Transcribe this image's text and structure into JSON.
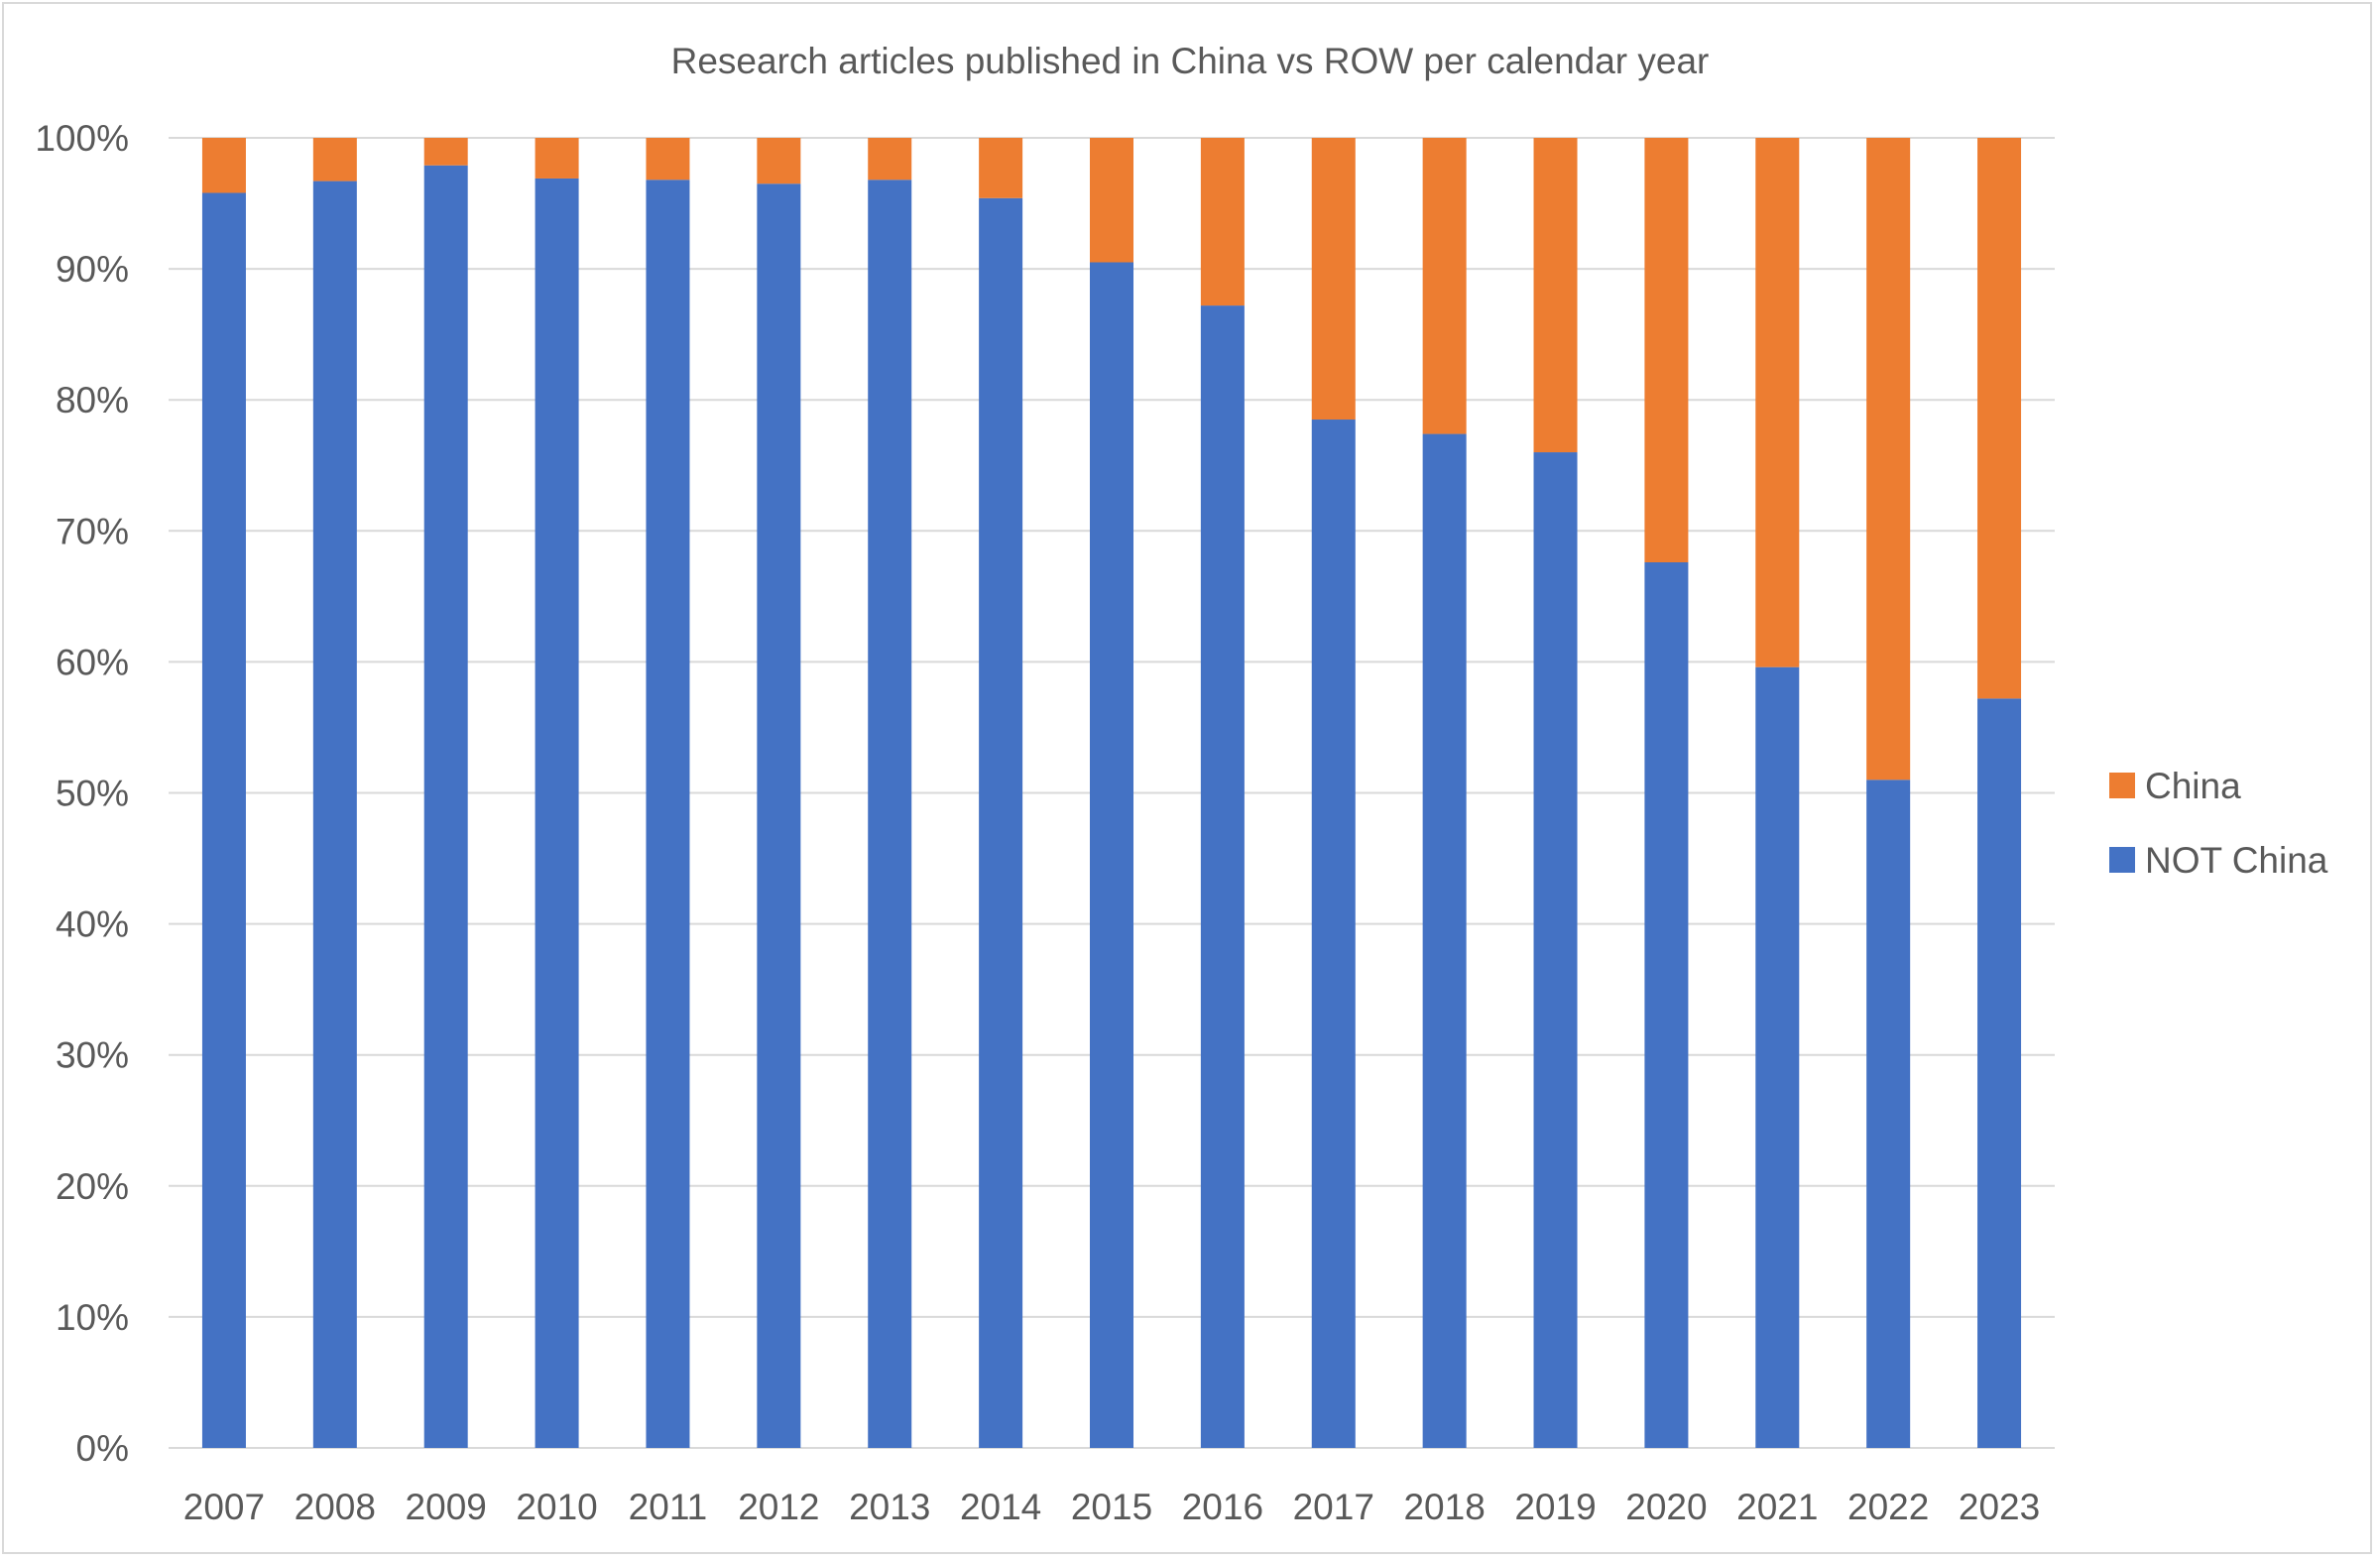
{
  "chart_data": {
    "type": "bar",
    "stacked": true,
    "percent_stacked": true,
    "title": "Research articles published in China vs ROW per calendar year",
    "xlabel": "",
    "ylabel": "",
    "categories": [
      "2007",
      "2008",
      "2009",
      "2010",
      "2011",
      "2012",
      "2013",
      "2014",
      "2015",
      "2016",
      "2017",
      "2018",
      "2019",
      "2020",
      "2021",
      "2022",
      "2023"
    ],
    "series": [
      {
        "name": "NOT China",
        "color": "#4472C4",
        "values": [
          95.8,
          96.7,
          97.9,
          96.9,
          96.8,
          96.5,
          96.8,
          95.4,
          90.5,
          87.2,
          78.5,
          77.4,
          76.0,
          67.6,
          59.6,
          51.0,
          57.2
        ]
      },
      {
        "name": "China",
        "color": "#ED7D31",
        "values": [
          4.2,
          3.3,
          2.1,
          3.1,
          3.2,
          3.5,
          3.2,
          4.6,
          9.5,
          12.8,
          21.5,
          22.6,
          24.0,
          32.4,
          40.4,
          49.0,
          42.8
        ]
      }
    ],
    "ylim": [
      0,
      100
    ],
    "yticks": [
      "0%",
      "10%",
      "20%",
      "30%",
      "40%",
      "50%",
      "60%",
      "70%",
      "80%",
      "90%",
      "100%"
    ],
    "grid": true,
    "legend": {
      "placement": "right",
      "entries": [
        {
          "name": "China",
          "color": "#ED7D31"
        },
        {
          "name": "NOT China",
          "color": "#4472C4"
        }
      ]
    }
  }
}
